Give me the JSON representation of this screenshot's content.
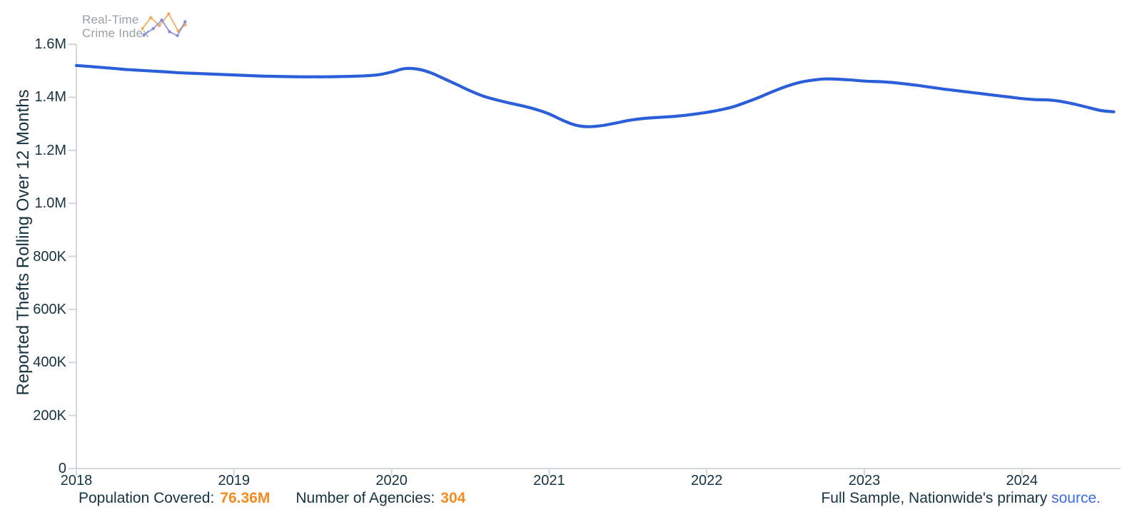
{
  "logo": {
    "line1": "Real-Time",
    "line2": "Crime Index"
  },
  "chart": {
    "y_axis_title": "Reported Thefts Rolling Over 12 Months",
    "y_ticks": [
      "0",
      "200K",
      "400K",
      "600K",
      "800K",
      "1.0M",
      "1.2M",
      "1.4M",
      "1.6M"
    ],
    "x_ticks": [
      "2018",
      "2019",
      "2020",
      "2021",
      "2022",
      "2023",
      "2024"
    ]
  },
  "chart_data": {
    "type": "line",
    "title": "",
    "xlabel": "",
    "ylabel": "Reported Thefts Rolling Over 12 Months",
    "ylim": [
      0,
      1600000
    ],
    "xlim": [
      2018,
      2024.6
    ],
    "grid": false,
    "legend": "none",
    "x_tick_labels": [
      "2018",
      "2019",
      "2020",
      "2021",
      "2022",
      "2023",
      "2024"
    ],
    "y_tick_labels": [
      "0",
      "200K",
      "400K",
      "600K",
      "800K",
      "1.0M",
      "1.2M",
      "1.4M",
      "1.6M"
    ],
    "unit": "reported thefts (rolling 12-month sum)",
    "series": [
      {
        "name": "Reported Thefts Rolling Over 12 Months",
        "color": "#2b5fd9",
        "x_unit": "decimal year, monthly points",
        "x": [
          2018.0,
          2018.083,
          2018.167,
          2018.25,
          2018.333,
          2018.417,
          2018.5,
          2018.583,
          2018.667,
          2018.75,
          2018.833,
          2018.917,
          2019.0,
          2019.083,
          2019.167,
          2019.25,
          2019.333,
          2019.417,
          2019.5,
          2019.583,
          2019.667,
          2019.75,
          2019.833,
          2019.917,
          2020.0,
          2020.083,
          2020.167,
          2020.25,
          2020.333,
          2020.417,
          2020.5,
          2020.583,
          2020.667,
          2020.75,
          2020.833,
          2020.917,
          2021.0,
          2021.083,
          2021.167,
          2021.25,
          2021.333,
          2021.417,
          2021.5,
          2021.583,
          2021.667,
          2021.75,
          2021.833,
          2021.917,
          2022.0,
          2022.083,
          2022.167,
          2022.25,
          2022.333,
          2022.417,
          2022.5,
          2022.583,
          2022.667,
          2022.75,
          2022.833,
          2022.917,
          2023.0,
          2023.083,
          2023.167,
          2023.25,
          2023.333,
          2023.417,
          2023.5,
          2023.583,
          2023.667,
          2023.75,
          2023.833,
          2023.917,
          2024.0,
          2024.083,
          2024.167,
          2024.25,
          2024.333,
          2024.417,
          2024.5,
          2024.583
        ],
        "values": [
          1520000,
          1516000,
          1512000,
          1508000,
          1504000,
          1501000,
          1498000,
          1495000,
          1492000,
          1490000,
          1488000,
          1486000,
          1484000,
          1482000,
          1480000,
          1479000,
          1478000,
          1477000,
          1477000,
          1477000,
          1478000,
          1479000,
          1481000,
          1485000,
          1495000,
          1508000,
          1506000,
          1492000,
          1470000,
          1447000,
          1424000,
          1404000,
          1390000,
          1378000,
          1367000,
          1354000,
          1337000,
          1314000,
          1295000,
          1289000,
          1293000,
          1302000,
          1312000,
          1319000,
          1323000,
          1326000,
          1330000,
          1336000,
          1343000,
          1352000,
          1364000,
          1381000,
          1400000,
          1421000,
          1440000,
          1455000,
          1464000,
          1469000,
          1468000,
          1465000,
          1461000,
          1459000,
          1456000,
          1451000,
          1445000,
          1438000,
          1431000,
          1425000,
          1419000,
          1413000,
          1407000,
          1401000,
          1395000,
          1391000,
          1390000,
          1384000,
          1374000,
          1362000,
          1350000,
          1345000
        ]
      }
    ]
  },
  "footer": {
    "population_label": "Population Covered:",
    "population_value": "76.36M",
    "agencies_label": "Number of Agencies:",
    "agencies_value": "304",
    "note_text": "Full Sample, Nationwide's primary",
    "link_text": "source",
    "period": "."
  },
  "colors": {
    "line": "#2b5fd9",
    "axis": "#d2d7dc",
    "text_dark": "#163341",
    "logo_gray": "#9aa0a5",
    "accent_orange": "#f68b1f",
    "link_blue": "#3a6bea",
    "logo_icon_orange": "#f2a65a",
    "logo_icon_blue": "#7d87d8"
  }
}
